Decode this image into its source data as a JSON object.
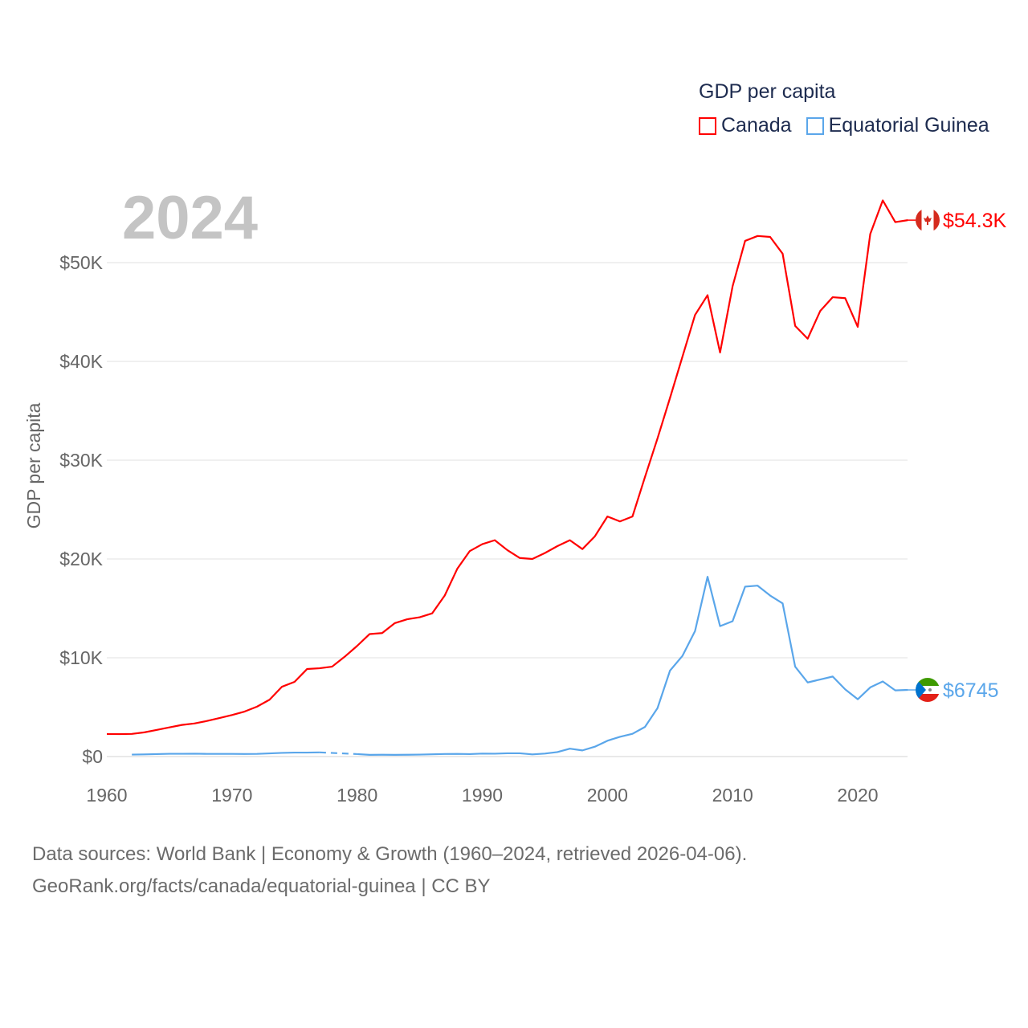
{
  "legend": {
    "title": "GDP per capita",
    "items": [
      {
        "label": "Canada",
        "color": "#ff0000"
      },
      {
        "label": "Equatorial Guinea",
        "color": "#5aa6ea"
      }
    ]
  },
  "year_label": "2024",
  "footer": {
    "line1": "Data sources: World Bank | Economy & Growth (1960–2024, retrieved 2026-04-06).",
    "line2": "GeoRank.org/facts/canada/equatorial-guinea | CC BY"
  },
  "chart_data": {
    "type": "line",
    "title": "GDP per capita",
    "xlabel": "",
    "ylabel": "GDP per capita",
    "xlim": [
      1960,
      2024
    ],
    "ylim": [
      0,
      55000
    ],
    "x_ticks": [
      1960,
      1970,
      1980,
      1990,
      2000,
      2010,
      2020
    ],
    "x_tick_labels": [
      "1960",
      "1970",
      "1980",
      "1990",
      "2000",
      "2010",
      "2020"
    ],
    "y_ticks": [
      0,
      10000,
      20000,
      30000,
      40000,
      50000
    ],
    "y_tick_labels": [
      "$0",
      "$10K",
      "$20K",
      "$30K",
      "$40K",
      "$50K"
    ],
    "grid": true,
    "legend_position": "top-right",
    "x": [
      1960,
      1961,
      1962,
      1963,
      1964,
      1965,
      1966,
      1967,
      1968,
      1969,
      1970,
      1971,
      1972,
      1973,
      1974,
      1975,
      1976,
      1977,
      1978,
      1979,
      1980,
      1981,
      1982,
      1983,
      1984,
      1985,
      1986,
      1987,
      1988,
      1989,
      1990,
      1991,
      1992,
      1993,
      1994,
      1995,
      1996,
      1997,
      1998,
      1999,
      2000,
      2001,
      2002,
      2003,
      2004,
      2005,
      2006,
      2007,
      2008,
      2009,
      2010,
      2011,
      2012,
      2013,
      2014,
      2015,
      2016,
      2017,
      2018,
      2019,
      2020,
      2021,
      2022,
      2023,
      2024
    ],
    "series": [
      {
        "name": "Canada",
        "color": "#ff0000",
        "end_label": "$54.3K",
        "values": [
          2280,
          2270,
          2290,
          2450,
          2700,
          2950,
          3200,
          3350,
          3600,
          3900,
          4200,
          4550,
          5050,
          5750,
          7070,
          7560,
          8860,
          8940,
          9100,
          10100,
          11200,
          12400,
          12500,
          13500,
          13900,
          14100,
          14500,
          16300,
          19000,
          20800,
          21500,
          21900,
          20900,
          20100,
          20000,
          20600,
          21300,
          21900,
          21000,
          22300,
          24300,
          23800,
          24300,
          28300,
          32200,
          36300,
          40500,
          44700,
          46700,
          40900,
          47600,
          52200,
          52700,
          52600,
          50900,
          43600,
          42300,
          45100,
          46500,
          46400,
          43500,
          52900,
          56300,
          54100,
          54300
        ]
      },
      {
        "name": "Equatorial Guinea",
        "color": "#5aa6ea",
        "end_label": "$6745",
        "values": [
          null,
          null,
          200,
          220,
          250,
          280,
          280,
          290,
          270,
          270,
          270,
          260,
          270,
          320,
          370,
          400,
          400,
          420,
          null,
          null,
          250,
          170,
          180,
          170,
          180,
          200,
          230,
          260,
          270,
          250,
          300,
          290,
          330,
          330,
          220,
          300,
          450,
          800,
          620,
          1000,
          1600,
          2000,
          2300,
          3000,
          4900,
          8700,
          10200,
          12700,
          18200,
          13200,
          13700,
          17200,
          17300,
          16300,
          15500,
          9100,
          7500,
          7800,
          8100,
          6800,
          5800,
          7000,
          7600,
          6700,
          6745
        ]
      }
    ]
  }
}
